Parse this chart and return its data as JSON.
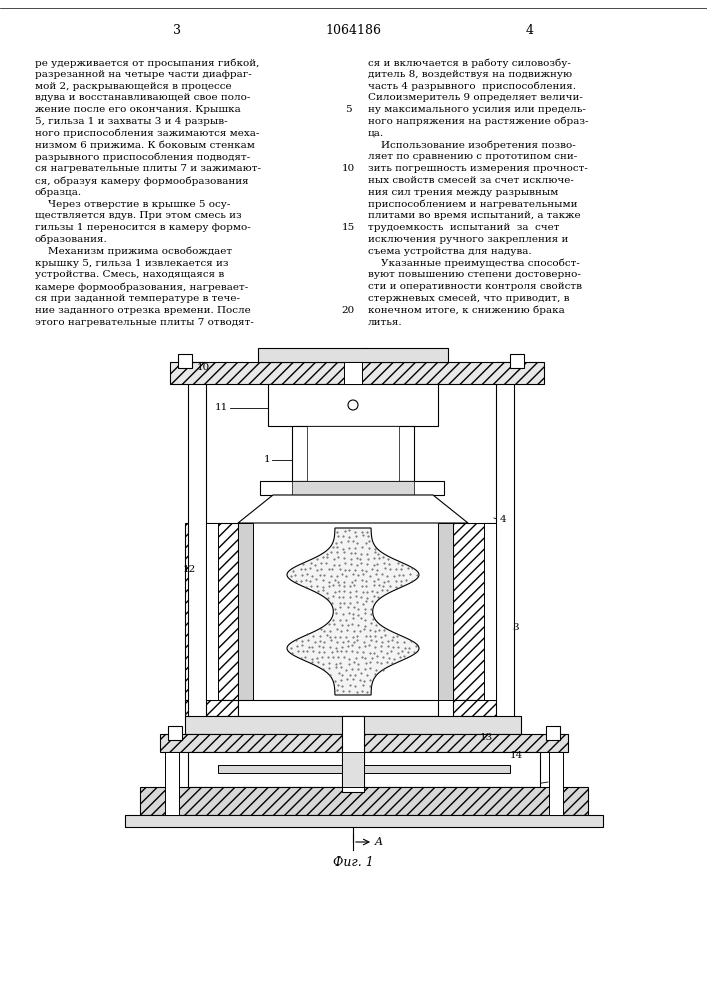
{
  "page_num_left": "3",
  "page_num_center": "1064186",
  "page_num_right": "4",
  "col1_lines": [
    "ре удерживается от просыпания гибкой,",
    "разрезанной на четыре части диафраг-",
    "мой 2, раскрывающейся в процессе",
    "вдува и восстанавливающей свое поло-",
    "жение после его окончания. Крышка",
    "5, гильза 1 и захваты 3 и 4 разрыв-",
    "ного приспособления зажимаются меха-",
    "низмом 6 прижима. К боковым стенкам",
    "разрывного приспособления подводят-",
    "ся нагревательные плиты 7 и зажимают-",
    "ся, образуя камеру формообразования",
    "образца.",
    "    Через отверстие в крышке 5 осу-",
    "ществляется вдув. При этом смесь из",
    "гильзы 1 переносится в камеру формо-",
    "образования.",
    "    Механизм прижима освобождает",
    "крышку 5, гильза 1 извлекается из",
    "устройства. Смесь, находящаяся в",
    "камере формообразования, нагревает-",
    "ся при заданной температуре в тече-",
    "ние заданного отрезка времени. После",
    "этого нагревательные плиты 7 отводят-"
  ],
  "col2_lines": [
    "ся и включается в работу силовозбу-",
    "дитель 8, воздействуя на подвижную",
    "часть 4 разрывного  приспособления.",
    "Силоизмеритель 9 определяет величи-",
    "ну максимального усилия или предель-",
    "ного напряжения на растяжение образ-",
    "ца.",
    "    Использование изобретения позво-",
    "ляет по сравнению с прототипом сни-",
    "зить погрешность измерения прочност-",
    "ных свойств смесей за счет исключе-",
    "ния сил трения между разрывным",
    "приспособлением и нагревательными",
    "плитами во время испытаний, а также",
    "трудоемкость  испытаний  за  счет",
    "исключения ручного закрепления и",
    "съема устройства для надува.",
    "    Указанные преимущества способст-",
    "вуют повышению степени достоверно-",
    "сти и оперативности контроля свойств",
    "стержневых смесей, что приводит, в",
    "конечном итоге, к снижению брака",
    "литья."
  ],
  "line_numbers": {
    "4": "5",
    "9": "10",
    "14": "15",
    "21": "20"
  },
  "fig_caption": "Фиг. 1",
  "bg_color": "#ffffff",
  "text_color": "#000000",
  "font_size": 7.5,
  "hatch_color": "#000000"
}
